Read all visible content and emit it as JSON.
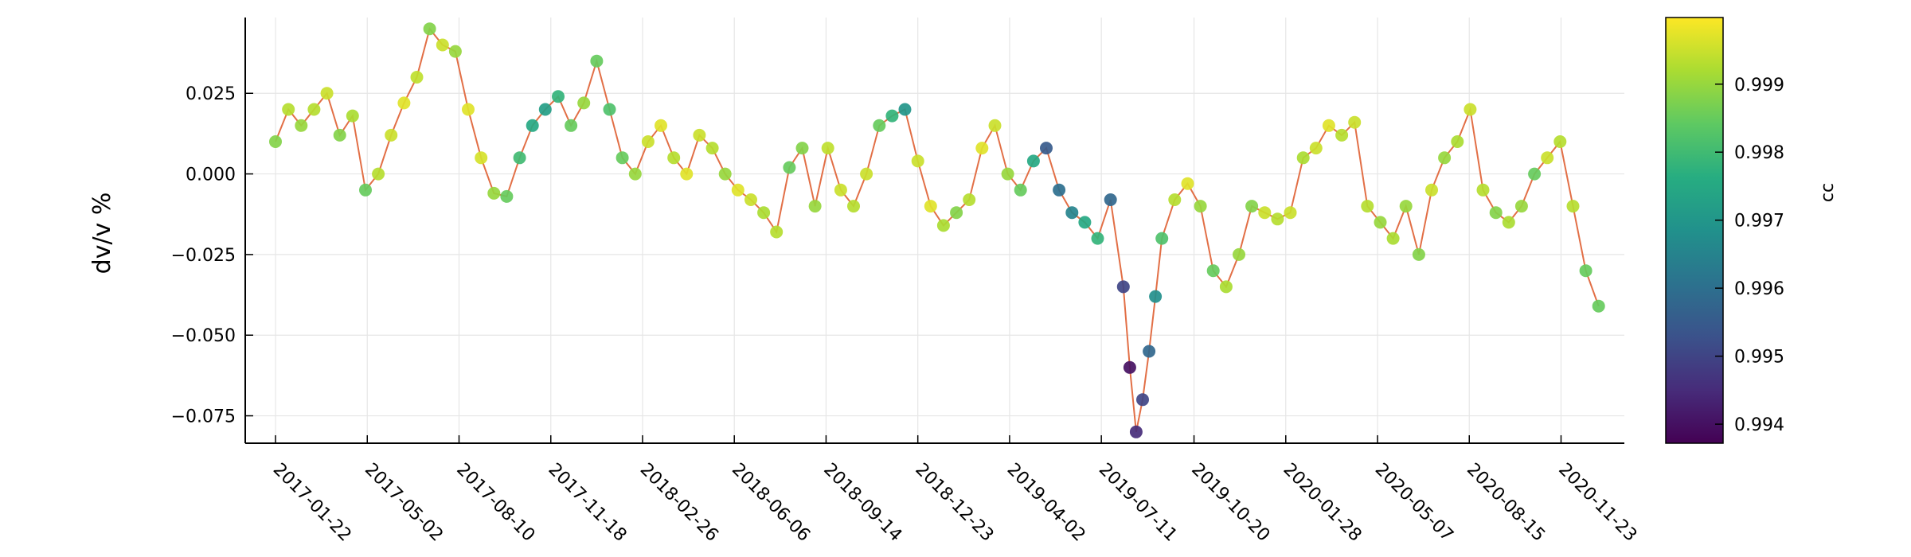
{
  "chart_data": {
    "type": "scatter",
    "title": "",
    "xlabel": "",
    "ylabel": "dv/v %",
    "colorbar_label": "cc",
    "x_ticks": [
      "2017-01-22",
      "2017-05-02",
      "2017-08-10",
      "2017-11-18",
      "2018-02-26",
      "2018-06-06",
      "2018-09-14",
      "2018-12-23",
      "2019-04-02",
      "2019-07-11",
      "2019-10-20",
      "2020-01-28",
      "2020-05-07",
      "2020-08-15",
      "2020-11-23"
    ],
    "xlim": [
      "2016-12-20",
      "2021-01-31"
    ],
    "y_ticks": [
      0.025,
      0.0,
      -0.025,
      -0.05,
      -0.075
    ],
    "y_tick_labels": [
      "0.025",
      "0.000",
      "−0.025",
      "−0.050",
      "−0.075"
    ],
    "ylim": [
      -0.0835,
      0.0485
    ],
    "colorbar_ticks": [
      0.999,
      0.998,
      0.997,
      0.996,
      0.995,
      0.994
    ],
    "colorbar_tick_labels": [
      "0.999",
      "0.998",
      "0.997",
      "0.996",
      "0.995",
      "0.994"
    ],
    "colorbar_range": [
      0.99372,
      0.99998
    ],
    "colormap": "viridis",
    "line_color": "#e26f46",
    "grid": true,
    "legend": "none",
    "series": [
      {
        "x": [
          "2017-01-22",
          "2017-02-05",
          "2017-02-19",
          "2017-03-05",
          "2017-03-19",
          "2017-04-02",
          "2017-04-16",
          "2017-04-30",
          "2017-05-14",
          "2017-05-28",
          "2017-06-11",
          "2017-06-25",
          "2017-07-09",
          "2017-07-23",
          "2017-08-06",
          "2017-08-20",
          "2017-09-03",
          "2017-09-17",
          "2017-10-01",
          "2017-10-15",
          "2017-10-29",
          "2017-11-12",
          "2017-11-26",
          "2017-12-10",
          "2017-12-24",
          "2018-01-07",
          "2018-01-21",
          "2018-02-04",
          "2018-02-18",
          "2018-03-04",
          "2018-03-18",
          "2018-04-01",
          "2018-04-15",
          "2018-04-29",
          "2018-05-13",
          "2018-05-27",
          "2018-06-10",
          "2018-06-24",
          "2018-07-08",
          "2018-07-22",
          "2018-08-05",
          "2018-08-19",
          "2018-09-02",
          "2018-09-16",
          "2018-09-30",
          "2018-10-14",
          "2018-10-28",
          "2018-11-11",
          "2018-11-25",
          "2018-12-09",
          "2018-12-23",
          "2019-01-06",
          "2019-01-20",
          "2019-02-03",
          "2019-02-17",
          "2019-03-03",
          "2019-03-17",
          "2019-03-31",
          "2019-04-14",
          "2019-04-28",
          "2019-05-12",
          "2019-05-26",
          "2019-06-09",
          "2019-06-23",
          "2019-07-07",
          "2019-07-21",
          "2019-08-04",
          "2019-08-11",
          "2019-08-18",
          "2019-08-25",
          "2019-09-01",
          "2019-09-08",
          "2019-09-15",
          "2019-09-29",
          "2019-10-13",
          "2019-10-27",
          "2019-11-10",
          "2019-11-24",
          "2019-12-08",
          "2019-12-22",
          "2020-01-05",
          "2020-01-19",
          "2020-02-02",
          "2020-02-16",
          "2020-03-01",
          "2020-03-15",
          "2020-03-29",
          "2020-04-12",
          "2020-04-26",
          "2020-05-10",
          "2020-05-24",
          "2020-06-07",
          "2020-06-21",
          "2020-07-05",
          "2020-07-19",
          "2020-08-02",
          "2020-08-16",
          "2020-08-30",
          "2020-09-13",
          "2020-09-27",
          "2020-10-11",
          "2020-10-25",
          "2020-11-08",
          "2020-11-22",
          "2020-12-06",
          "2020-12-20",
          "2021-01-03"
        ],
        "y": [
          0.01,
          0.02,
          0.015,
          0.02,
          0.025,
          0.012,
          0.018,
          -0.005,
          0.0,
          0.012,
          0.022,
          0.03,
          0.045,
          0.04,
          0.038,
          0.02,
          0.005,
          -0.006,
          -0.007,
          0.005,
          0.015,
          0.02,
          0.024,
          0.015,
          0.022,
          0.035,
          0.02,
          0.005,
          0.0,
          0.01,
          0.015,
          0.005,
          0.0,
          0.012,
          0.008,
          0.0,
          -0.005,
          -0.008,
          -0.012,
          -0.018,
          0.002,
          0.008,
          -0.01,
          0.008,
          -0.005,
          -0.01,
          0.0,
          0.015,
          0.018,
          0.02,
          0.004,
          -0.01,
          -0.016,
          -0.012,
          -0.008,
          0.008,
          0.015,
          0.0,
          -0.005,
          0.004,
          0.008,
          -0.005,
          -0.012,
          -0.015,
          -0.02,
          -0.008,
          -0.035,
          -0.06,
          -0.08,
          -0.07,
          -0.055,
          -0.038,
          -0.02,
          -0.008,
          -0.003,
          -0.01,
          -0.03,
          -0.035,
          -0.025,
          -0.01,
          -0.012,
          -0.014,
          -0.012,
          0.005,
          0.008,
          0.015,
          0.012,
          0.016,
          -0.01,
          -0.015,
          -0.02,
          -0.01,
          -0.025,
          -0.005,
          0.005,
          0.01,
          0.02,
          -0.005,
          -0.012,
          -0.015,
          -0.01,
          0.0,
          0.005,
          0.01,
          -0.01,
          -0.03,
          -0.041
        ],
        "cc": [
          0.9988,
          0.9993,
          0.999,
          0.9993,
          0.9995,
          0.9988,
          0.9992,
          0.9985,
          0.9993,
          0.9995,
          0.9997,
          0.9994,
          0.9988,
          0.9995,
          0.999,
          0.9997,
          0.9996,
          0.999,
          0.9985,
          0.998,
          0.9975,
          0.9972,
          0.9978,
          0.9985,
          0.999,
          0.9985,
          0.9982,
          0.9985,
          0.999,
          0.9995,
          0.9997,
          0.9993,
          0.9997,
          0.9995,
          0.9993,
          0.999,
          0.9997,
          0.9995,
          0.9992,
          0.9993,
          0.9985,
          0.9988,
          0.999,
          0.9994,
          0.9995,
          0.9993,
          0.9995,
          0.9985,
          0.9978,
          0.997,
          0.9995,
          0.9997,
          0.9992,
          0.9988,
          0.9993,
          0.9997,
          0.9995,
          0.999,
          0.9985,
          0.9975,
          0.9955,
          0.996,
          0.9965,
          0.9975,
          0.9978,
          0.9958,
          0.995,
          0.994,
          0.9945,
          0.995,
          0.9958,
          0.9968,
          0.9982,
          0.9993,
          0.9997,
          0.999,
          0.9985,
          0.9992,
          0.999,
          0.9988,
          0.9995,
          0.9993,
          0.9995,
          0.9992,
          0.9995,
          0.9997,
          0.9993,
          0.9995,
          0.9993,
          0.999,
          0.9992,
          0.999,
          0.9988,
          0.9995,
          0.999,
          0.9992,
          0.9995,
          0.9993,
          0.9988,
          0.9992,
          0.999,
          0.9985,
          0.9995,
          0.9993,
          0.9993,
          0.9985,
          0.9985
        ]
      }
    ]
  }
}
